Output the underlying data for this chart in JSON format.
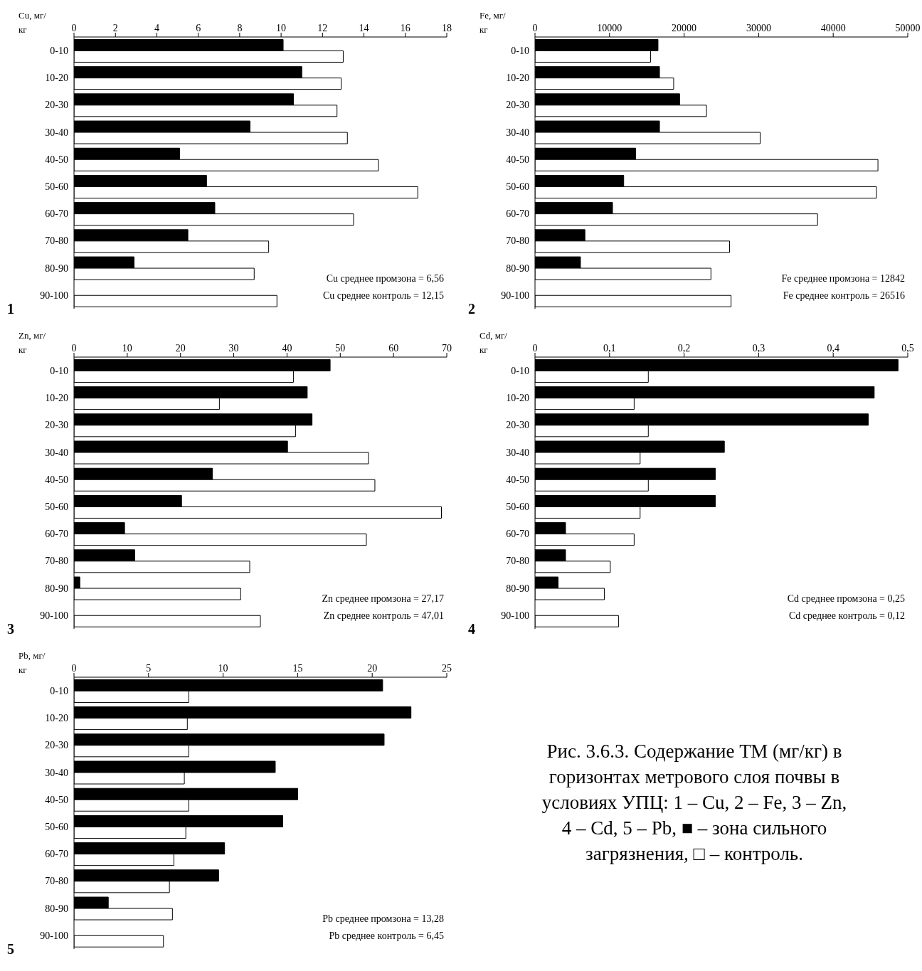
{
  "chart_data": [
    {
      "type": "bar",
      "orientation": "horizontal",
      "title": "1",
      "xlabel": "Cu, мг/кг",
      "categories": [
        "0-10",
        "10-20",
        "20-30",
        "30-40",
        "40-50",
        "50-60",
        "60-70",
        "70-80",
        "80-90",
        "90-100"
      ],
      "xlim": [
        0,
        18
      ],
      "xticks": [
        0,
        2,
        4,
        6,
        8,
        10,
        12,
        14,
        16,
        18
      ],
      "series": [
        {
          "color": "#000000",
          "values": [
            10.1,
            11.0,
            10.6,
            8.5,
            5.1,
            6.4,
            6.8,
            5.5,
            2.9,
            null
          ]
        },
        {
          "color": "#ffffff",
          "values": [
            13.0,
            12.9,
            12.7,
            13.2,
            14.7,
            16.6,
            13.5,
            9.4,
            8.7,
            9.8
          ]
        }
      ],
      "annotations": [
        "Cu среднее промзона = 6,56",
        "Cu среднее контроль = 12,15"
      ]
    },
    {
      "type": "bar",
      "orientation": "horizontal",
      "title": "2",
      "xlabel": "Fe, мг/кг",
      "categories": [
        "0-10",
        "10-20",
        "20-30",
        "30-40",
        "40-50",
        "50-60",
        "60-70",
        "70-80",
        "80-90",
        "90-100"
      ],
      "xlim": [
        0,
        50000
      ],
      "xticks": [
        0,
        10000,
        20000,
        30000,
        40000,
        50000
      ],
      "series": [
        {
          "color": "#000000",
          "values": [
            16500,
            16700,
            19400,
            16700,
            13500,
            11900,
            10400,
            6700,
            6100,
            null
          ]
        },
        {
          "color": "#ffffff",
          "values": [
            15500,
            18600,
            23000,
            30200,
            46000,
            45800,
            37900,
            26100,
            23600,
            26300
          ]
        }
      ],
      "annotations": [
        "Fe среднее промзона = 12842",
        "Fe среднее контроль = 26516"
      ]
    },
    {
      "type": "bar",
      "orientation": "horizontal",
      "title": "3",
      "xlabel": "Zn, мг/кг",
      "categories": [
        "0-10",
        "10-20",
        "20-30",
        "30-40",
        "40-50",
        "50-60",
        "60-70",
        "70-80",
        "80-90",
        "90-100"
      ],
      "xlim": [
        0,
        70
      ],
      "xticks": [
        0,
        10,
        20,
        30,
        40,
        50,
        60,
        70
      ],
      "series": [
        {
          "color": "#000000",
          "values": [
            48.1,
            43.8,
            44.7,
            40.1,
            26.0,
            20.2,
            9.5,
            11.4,
            1.1,
            null
          ]
        },
        {
          "color": "#ffffff",
          "values": [
            41.2,
            27.3,
            41.6,
            55.3,
            56.5,
            69.0,
            54.9,
            33.0,
            31.3,
            35.0
          ]
        }
      ],
      "annotations": [
        "Zn среднее промзона = 27,17",
        "Zn среднее контроль = 47,01"
      ]
    },
    {
      "type": "bar",
      "orientation": "horizontal",
      "title": "4",
      "xlabel": "Cd, мг/кг",
      "categories": [
        "0-10",
        "10-20",
        "20-30",
        "30-40",
        "40-50",
        "50-60",
        "60-70",
        "70-80",
        "80-90",
        "90-100"
      ],
      "xlim": [
        0,
        0.5
      ],
      "xticks": [
        0,
        {
          "value": 0.1,
          "label": "0,1"
        },
        {
          "value": 0.2,
          "label": "0,2"
        },
        {
          "value": 0.3,
          "label": "0,3"
        },
        {
          "value": 0.4,
          "label": "0,4"
        },
        {
          "value": 0.5,
          "label": "0,5"
        }
      ],
      "series": [
        {
          "color": "#000000",
          "values": [
            0.487,
            0.455,
            0.447,
            0.254,
            0.242,
            0.242,
            0.041,
            0.041,
            0.031,
            null
          ]
        },
        {
          "color": "#ffffff",
          "values": [
            0.152,
            0.133,
            0.152,
            0.141,
            0.152,
            0.141,
            0.133,
            0.101,
            0.093,
            0.112
          ]
        }
      ],
      "annotations": [
        "Cd среднее промзона = 0,25",
        "Cd среднее контроль = 0,12"
      ]
    },
    {
      "type": "bar",
      "orientation": "horizontal",
      "title": "5",
      "xlabel": "Pb, мг/кг",
      "categories": [
        "0-10",
        "10-20",
        "20-30",
        "30-40",
        "40-50",
        "50-60",
        "60-70",
        "70-80",
        "80-90",
        "90-100"
      ],
      "xlim": [
        0,
        25
      ],
      "xticks": [
        0,
        5,
        10,
        15,
        20,
        25
      ],
      "series": [
        {
          "color": "#000000",
          "values": [
            20.7,
            22.6,
            20.8,
            13.5,
            15.0,
            14.0,
            10.1,
            9.7,
            2.3,
            null
          ]
        },
        {
          "color": "#ffffff",
          "values": [
            7.7,
            7.6,
            7.7,
            7.4,
            7.7,
            7.5,
            6.7,
            6.4,
            6.6,
            6.0
          ]
        }
      ],
      "annotations": [
        "Pb среднее промзона = 13,28",
        "Pb среднее контроль = 6,45"
      ]
    },
    {
      "type": "other",
      "title": "Рис. 3.6.3. Содержание ТМ (мг/кг) в горизонтах метрового слоя почвы в условиях УПЦ: 1 – Cu, 2 – Fe, 3 – Zn, 4 – Cd, 5 – Pb, ■ – зона сильного загрязнения, □ – контроль."
    }
  ]
}
